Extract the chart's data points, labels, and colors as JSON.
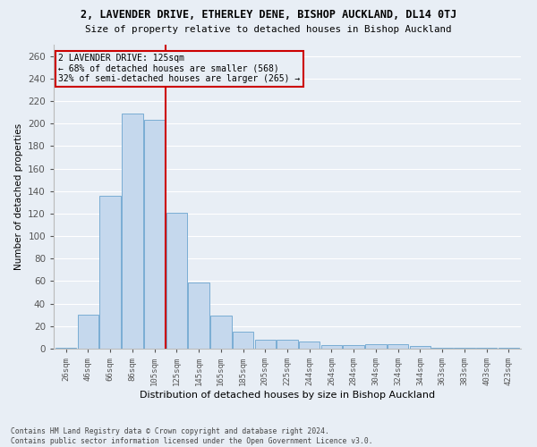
{
  "title1": "2, LAVENDER DRIVE, ETHERLEY DENE, BISHOP AUCKLAND, DL14 0TJ",
  "title2": "Size of property relative to detached houses in Bishop Auckland",
  "xlabel": "Distribution of detached houses by size in Bishop Auckland",
  "ylabel": "Number of detached properties",
  "categories": [
    "26sqm",
    "46sqm",
    "66sqm",
    "86sqm",
    "105sqm",
    "125sqm",
    "145sqm",
    "165sqm",
    "185sqm",
    "205sqm",
    "225sqm",
    "244sqm",
    "264sqm",
    "284sqm",
    "304sqm",
    "324sqm",
    "344sqm",
    "363sqm",
    "383sqm",
    "403sqm",
    "423sqm"
  ],
  "values": [
    1,
    30,
    136,
    209,
    203,
    121,
    59,
    29,
    15,
    8,
    8,
    6,
    3,
    3,
    4,
    4,
    2,
    1,
    1,
    1,
    1
  ],
  "bar_color": "#c5d8ed",
  "bar_edge_color": "#7aadd4",
  "vline_color": "#cc0000",
  "vline_index": 5,
  "annotation_title": "2 LAVENDER DRIVE: 125sqm",
  "annotation_line2": "← 68% of detached houses are smaller (568)",
  "annotation_line3": "32% of semi-detached houses are larger (265) →",
  "annotation_box_color": "#cc0000",
  "bg_color": "#e8eef5",
  "grid_color": "#ffffff",
  "ylim": [
    0,
    270
  ],
  "yticks": [
    0,
    20,
    40,
    60,
    80,
    100,
    120,
    140,
    160,
    180,
    200,
    220,
    240,
    260
  ],
  "footnote1": "Contains HM Land Registry data © Crown copyright and database right 2024.",
  "footnote2": "Contains public sector information licensed under the Open Government Licence v3.0."
}
